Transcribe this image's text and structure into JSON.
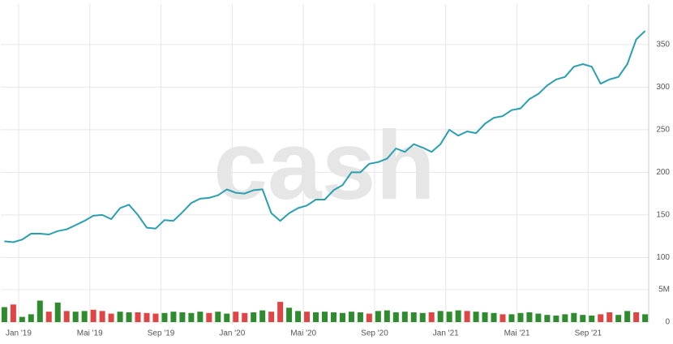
{
  "chart_data": [
    {
      "type": "line",
      "watermark": "cash",
      "x": [
        -0.8,
        -0.3,
        0.2,
        0.7,
        1.2,
        1.7,
        2.2,
        2.7,
        3.2,
        3.7,
        4.2,
        4.7,
        5.2,
        5.7,
        6.2,
        6.7,
        7.2,
        7.7,
        8.2,
        8.7,
        9.2,
        9.7,
        10.2,
        10.7,
        11.2,
        11.7,
        12.2,
        12.7,
        13.2,
        13.7,
        14.2,
        14.7,
        15.2,
        15.7,
        16.2,
        16.7,
        17.2,
        17.7,
        18.2,
        18.7,
        19.2,
        19.7,
        20.2,
        20.7,
        21.2,
        21.7,
        22.2,
        22.7,
        23.2,
        23.7,
        24.2,
        24.7,
        25.2,
        25.7,
        26.2,
        26.7,
        27.2,
        27.7,
        28.2,
        28.7,
        29.2,
        29.7,
        30.2,
        30.7,
        31.2,
        31.7,
        32.2,
        32.7,
        33.2,
        33.7,
        34.2,
        34.7,
        35.2
      ],
      "series": [
        {
          "color": "#2a9fb0",
          "values": [
            119,
            118,
            121,
            128,
            128,
            127,
            131,
            133,
            138,
            143,
            149,
            150,
            145,
            158,
            162,
            150,
            135,
            134,
            144,
            143,
            153,
            164,
            169,
            170,
            173,
            180,
            176,
            175,
            179,
            180,
            152,
            143,
            152,
            158,
            161,
            168,
            168,
            179,
            185,
            200,
            200,
            210,
            212,
            216,
            228,
            224,
            233,
            229,
            224,
            233,
            250,
            243,
            248,
            246,
            257,
            264,
            266,
            273,
            275,
            286,
            292,
            302,
            309,
            312,
            324,
            327,
            324,
            304,
            309,
            312,
            327,
            356,
            366
          ]
        }
      ],
      "xlim": [
        -1,
        35.4
      ],
      "xticks": [
        {
          "value": 0,
          "label": "Jan '19"
        },
        {
          "value": 4,
          "label": "Mai '19"
        },
        {
          "value": 8,
          "label": "Sep '19"
        },
        {
          "value": 12,
          "label": "Jan '20"
        },
        {
          "value": 16,
          "label": "Mai '20"
        },
        {
          "value": 20,
          "label": "Sep '20"
        },
        {
          "value": 24,
          "label": "Jan '21"
        },
        {
          "value": 28,
          "label": "Mai '21"
        },
        {
          "value": 32,
          "label": "Sep '21"
        }
      ],
      "ylim": [
        88,
        397.5
      ],
      "yticks": [
        100,
        150,
        200,
        250,
        300,
        350
      ],
      "grid": true
    },
    {
      "type": "bar",
      "series": [
        {
          "values": [
            2300000,
            2700000,
            800000,
            1200000,
            3300000,
            1600000,
            3000000,
            1700000,
            1600000,
            1700000,
            1900000,
            1700000,
            1300000,
            1600000,
            1500000,
            1500000,
            1400000,
            1300000,
            1400000,
            1600000,
            1500000,
            1400000,
            1600000,
            1400000,
            1600000,
            1300000,
            1600000,
            1400000,
            1500000,
            1800000,
            1600000,
            3100000,
            2200000,
            1700000,
            1600000,
            1500000,
            1600000,
            1500000,
            1400000,
            1600000,
            1500000,
            1300000,
            1700000,
            1800000,
            1500000,
            1600000,
            1500000,
            1400000,
            1500000,
            1700000,
            1600000,
            1800000,
            1700000,
            1600000,
            1500000,
            1400000,
            1200000,
            1200000,
            1400000,
            1500000,
            1300000,
            1100000,
            1000000,
            1200000,
            1400000,
            1100000,
            1000000,
            1200000,
            1500000,
            1100000,
            1700000,
            1500000,
            1200000
          ],
          "colors": [
            "#2e8b2e",
            "#e04545",
            "#2e8b2e",
            "#2e8b2e",
            "#2e8b2e",
            "#e04545",
            "#2e8b2e",
            "#e04545",
            "#2e8b2e",
            "#2e8b2e",
            "#e04545",
            "#e04545",
            "#e04545",
            "#2e8b2e",
            "#2e8b2e",
            "#e04545",
            "#e04545",
            "#e04545",
            "#2e8b2e",
            "#2e8b2e",
            "#2e8b2e",
            "#2e8b2e",
            "#2e8b2e",
            "#e04545",
            "#2e8b2e",
            "#2e8b2e",
            "#e04545",
            "#e04545",
            "#2e8b2e",
            "#2e8b2e",
            "#e04545",
            "#e04545",
            "#2e8b2e",
            "#2e8b2e",
            "#e04545",
            "#2e8b2e",
            "#2e8b2e",
            "#2e8b2e",
            "#2e8b2e",
            "#2e8b2e",
            "#2e8b2e",
            "#e04545",
            "#2e8b2e",
            "#2e8b2e",
            "#2e8b2e",
            "#2e8b2e",
            "#2e8b2e",
            "#2e8b2e",
            "#e04545",
            "#2e8b2e",
            "#2e8b2e",
            "#2e8b2e",
            "#e04545",
            "#2e8b2e",
            "#2e8b2e",
            "#2e8b2e",
            "#e04545",
            "#2e8b2e",
            "#2e8b2e",
            "#2e8b2e",
            "#2e8b2e",
            "#2e8b2e",
            "#2e8b2e",
            "#2e8b2e",
            "#2e8b2e",
            "#2e8b2e",
            "#2e8b2e",
            "#e04545",
            "#e04545",
            "#2e8b2e",
            "#2e8b2e",
            "#e04545",
            "#2e8b2e"
          ]
        }
      ],
      "ylim": [
        0,
        7100000
      ],
      "yticks": [
        0,
        {
          "value": 5000000,
          "label": "5M"
        }
      ]
    }
  ]
}
